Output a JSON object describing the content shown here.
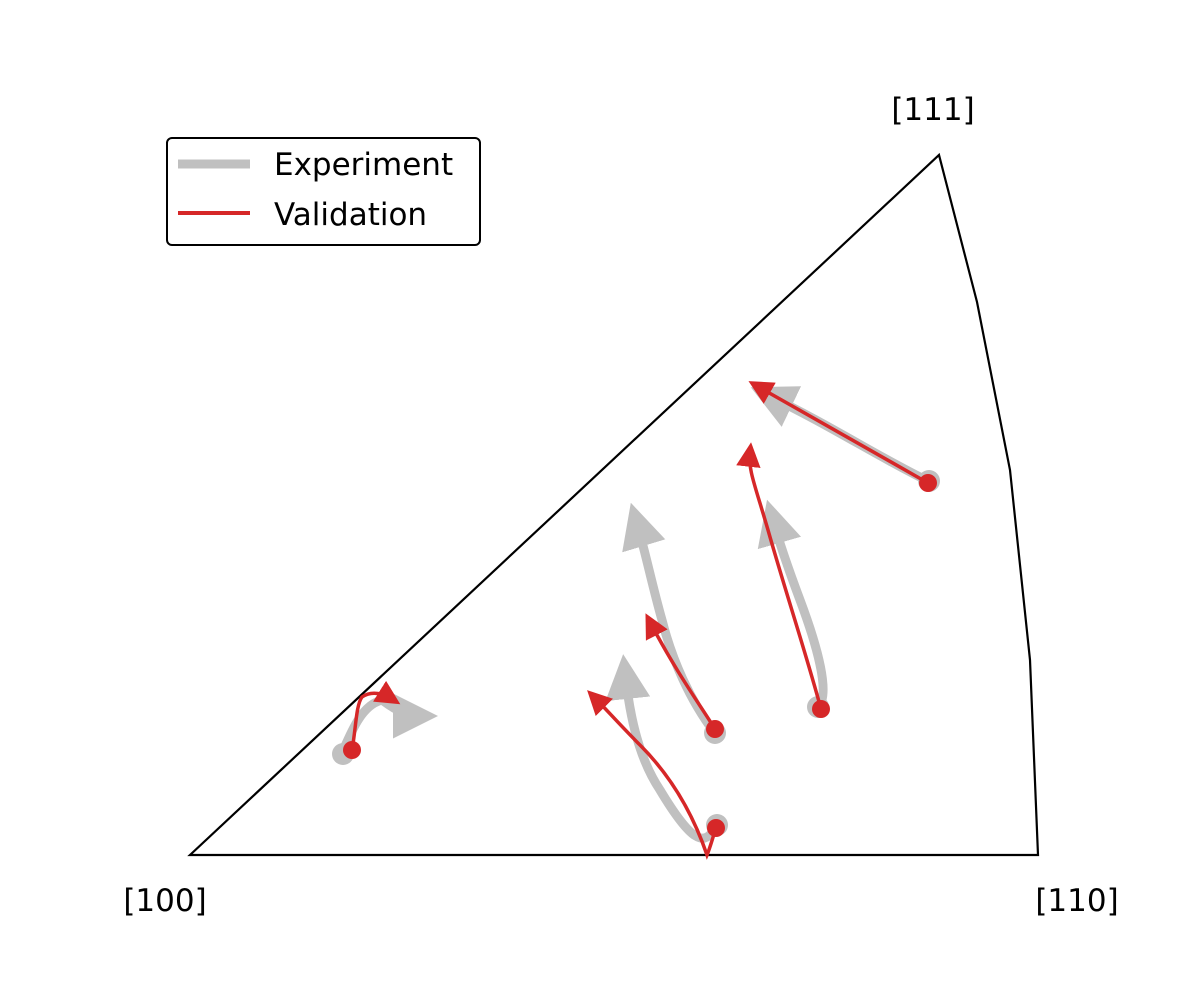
{
  "figure": {
    "corners": {
      "c100": "[100]",
      "c110": "[110]",
      "c111": "[111]"
    },
    "legend": {
      "items": [
        {
          "label": "Experiment",
          "color": "#c0c0c0"
        },
        {
          "label": "Validation",
          "color": "#d62728"
        }
      ]
    },
    "colors": {
      "experiment": "#c0c0c0",
      "validation": "#d62728",
      "outline": "#000000"
    },
    "series_names": [
      "Experiment",
      "Validation"
    ],
    "trajectory_count": 6
  }
}
